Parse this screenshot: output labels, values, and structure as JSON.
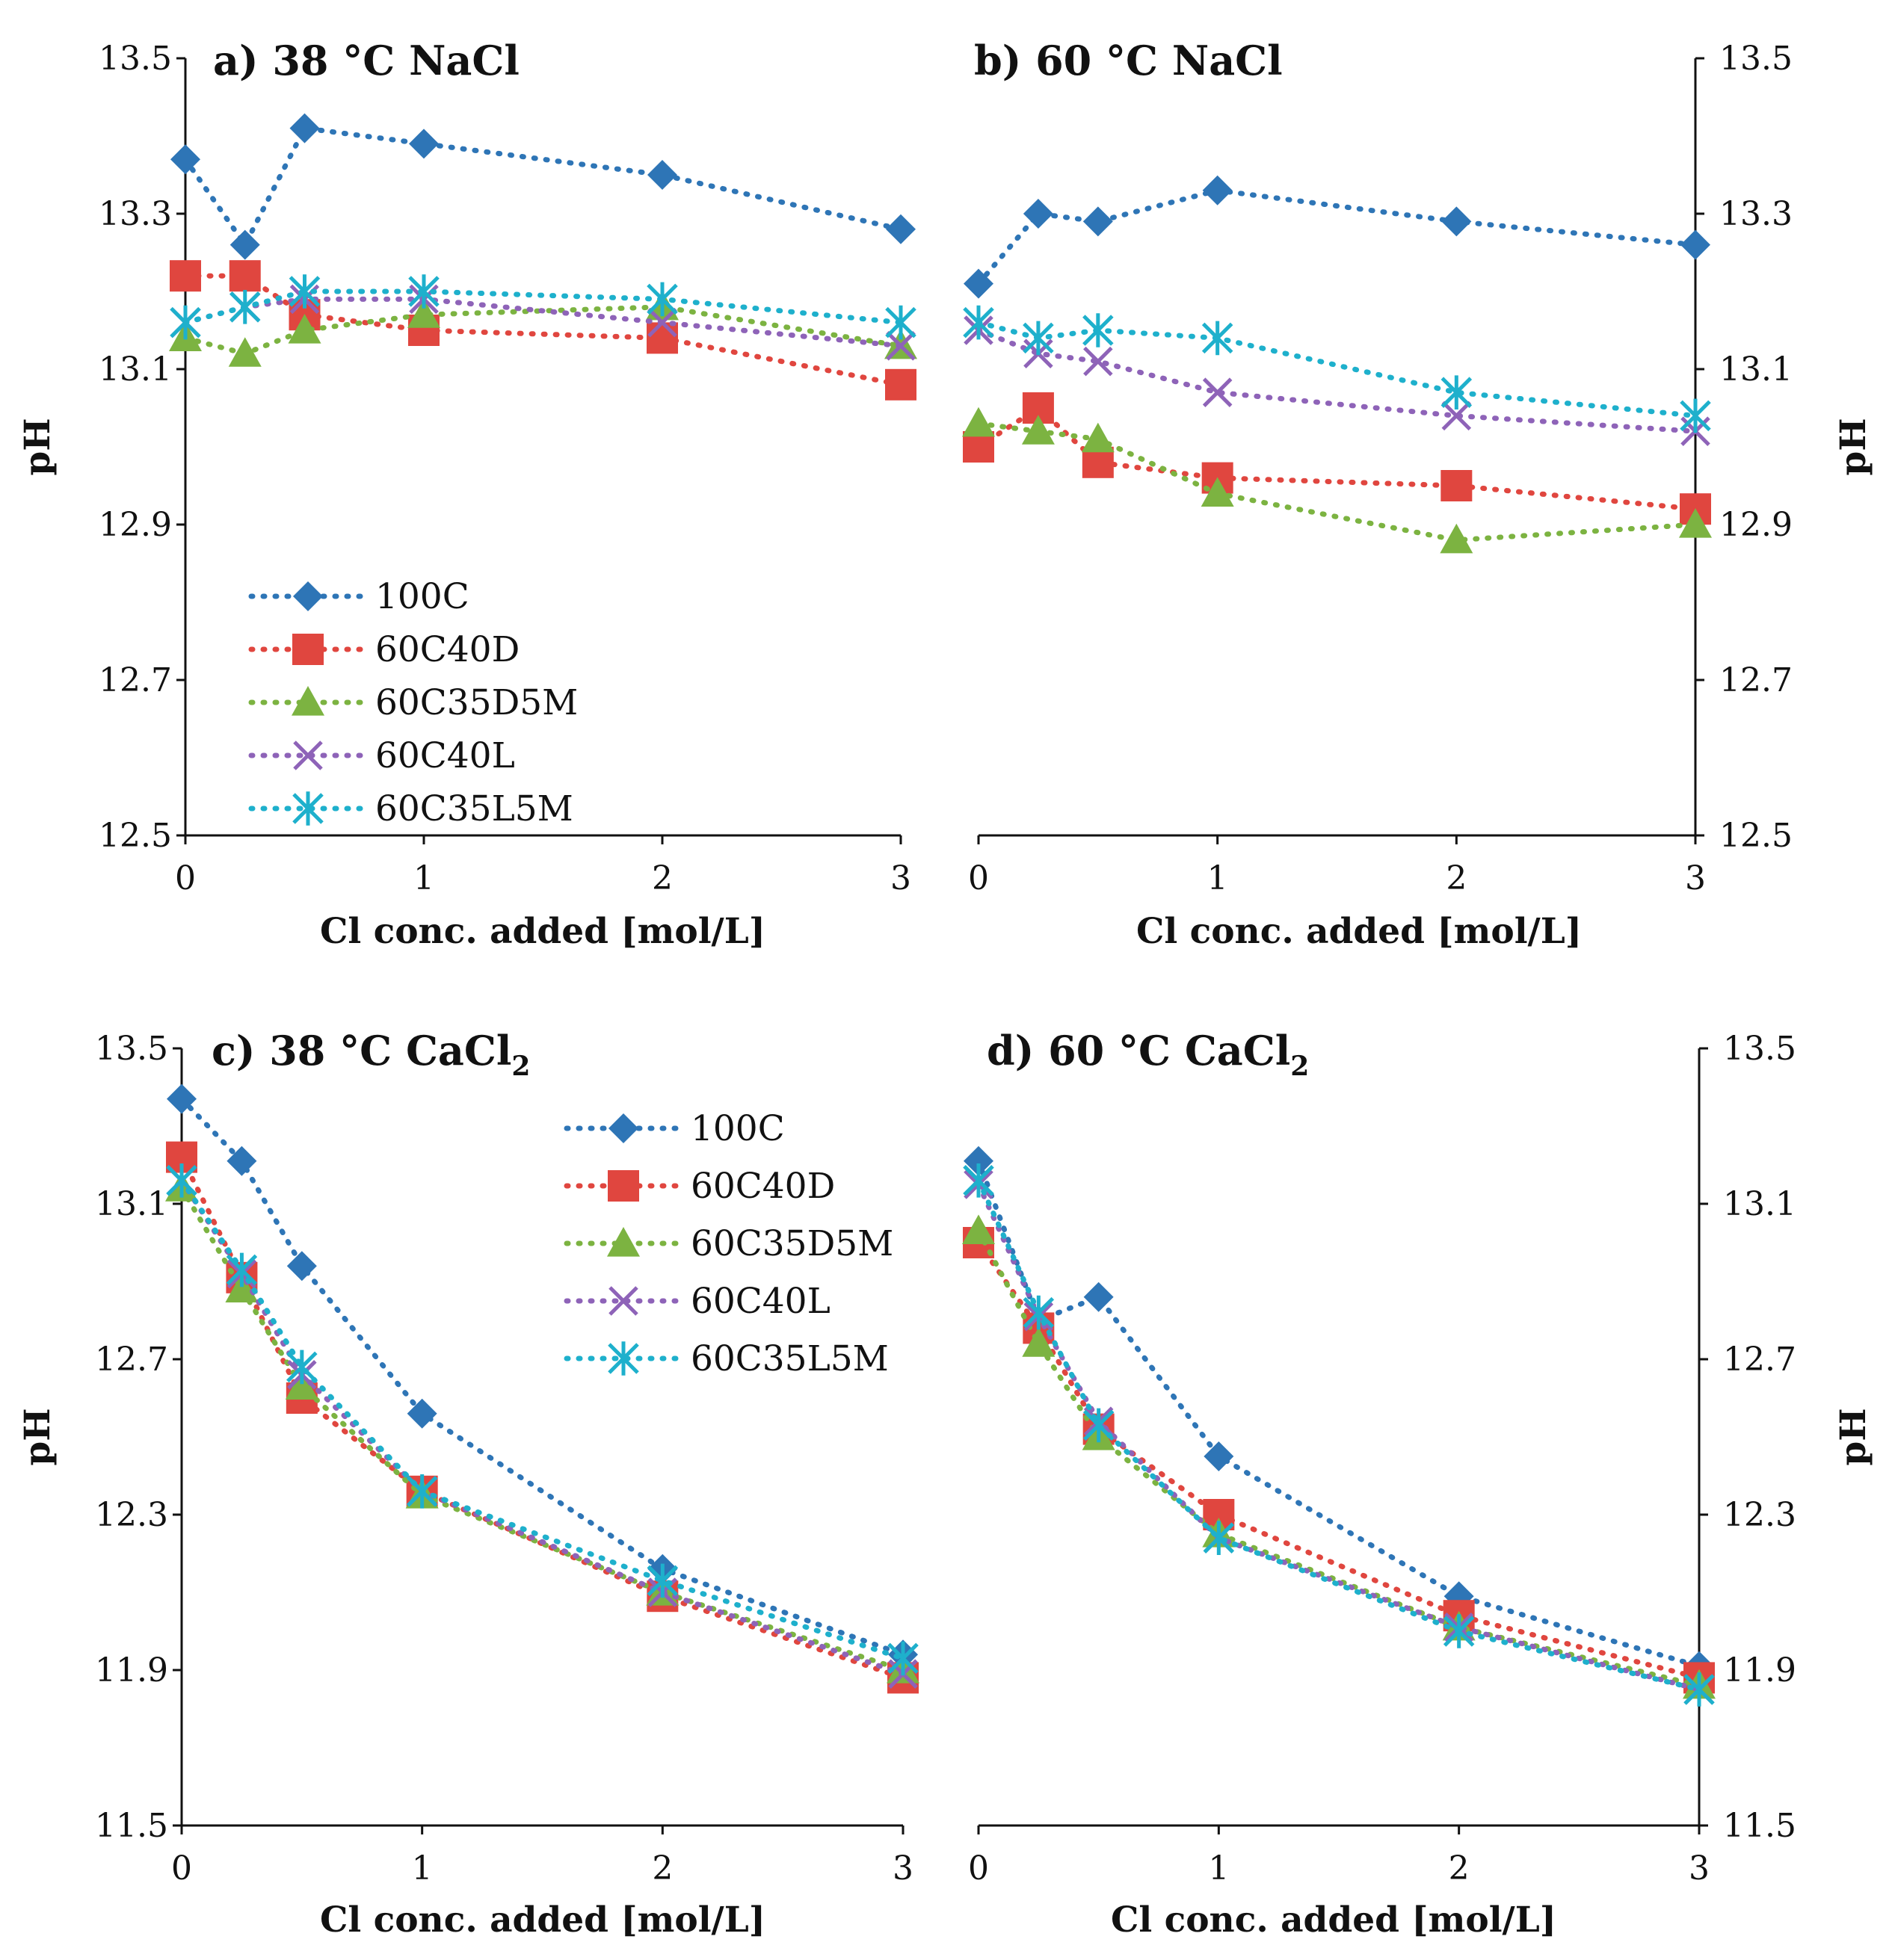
{
  "chart_data": [
    {
      "type": "line",
      "title": "a) 38 °C NaCl",
      "xlabel": "Cl conc. added [mol/L]",
      "ylabel": "pH",
      "x": [
        0,
        0.25,
        0.5,
        1,
        2,
        3
      ],
      "xticks": [
        "0",
        "1",
        "2",
        "3"
      ],
      "yticks": [
        "12.5",
        "12.7",
        "12.9",
        "13.1",
        "13.3",
        "13.5"
      ],
      "xlim": [
        0,
        3
      ],
      "ylim": [
        12.5,
        13.5
      ],
      "y_axis_side": "left",
      "legend": "middle-left",
      "series": [
        {
          "name": "100C",
          "values": [
            13.37,
            13.26,
            13.41,
            13.39,
            13.35,
            13.28
          ]
        },
        {
          "name": "60C40D",
          "values": [
            13.22,
            13.22,
            13.17,
            13.15,
            13.14,
            13.08
          ]
        },
        {
          "name": "60C35D5M",
          "values": [
            13.14,
            13.12,
            13.15,
            13.17,
            13.18,
            13.13
          ]
        },
        {
          "name": "60C40L",
          "values": [
            13.16,
            13.18,
            13.19,
            13.19,
            13.16,
            13.13
          ]
        },
        {
          "name": "60C35L5M",
          "values": [
            13.16,
            13.18,
            13.2,
            13.2,
            13.19,
            13.16
          ]
        }
      ]
    },
    {
      "type": "line",
      "title": "b) 60 °C NaCl",
      "xlabel": "Cl conc. added [mol/L]",
      "ylabel": "pH",
      "x": [
        0,
        0.25,
        0.5,
        1,
        2,
        3
      ],
      "xticks": [
        "0",
        "1",
        "2",
        "3"
      ],
      "yticks": [
        "12.5",
        "12.7",
        "12.9",
        "13.1",
        "13.3",
        "13.5"
      ],
      "xlim": [
        0,
        3
      ],
      "ylim": [
        12.5,
        13.5
      ],
      "y_axis_side": "right",
      "legend": "none",
      "series": [
        {
          "name": "100C",
          "values": [
            13.21,
            13.3,
            13.29,
            13.33,
            13.29,
            13.26
          ]
        },
        {
          "name": "60C40D",
          "values": [
            13.0,
            13.05,
            12.98,
            12.96,
            12.95,
            12.92
          ]
        },
        {
          "name": "60C35D5M",
          "values": [
            13.03,
            13.02,
            13.01,
            12.94,
            12.88,
            12.9
          ]
        },
        {
          "name": "60C40L",
          "values": [
            13.15,
            13.12,
            13.11,
            13.07,
            13.04,
            13.02
          ]
        },
        {
          "name": "60C35L5M",
          "values": [
            13.16,
            13.14,
            13.15,
            13.14,
            13.07,
            13.04
          ]
        }
      ]
    },
    {
      "type": "line",
      "title": "c) 38 °C CaCl",
      "title_subscript": "2",
      "xlabel": "Cl conc. added [mol/L]",
      "ylabel": "pH",
      "x": [
        0,
        0.25,
        0.5,
        1,
        2,
        3
      ],
      "xticks": [
        "0",
        "1",
        "2",
        "3"
      ],
      "yticks": [
        "11.5",
        "11.9",
        "12.3",
        "12.7",
        "13.1",
        "13.5"
      ],
      "xlim": [
        0,
        3
      ],
      "ylim": [
        11.5,
        13.5
      ],
      "y_axis_side": "left",
      "legend": "top-center",
      "series": [
        {
          "name": "100C",
          "values": [
            13.37,
            13.21,
            12.94,
            12.56,
            12.16,
            11.94
          ]
        },
        {
          "name": "60C40D",
          "values": [
            13.22,
            12.91,
            12.6,
            12.36,
            12.09,
            11.88
          ]
        },
        {
          "name": "60C35D5M",
          "values": [
            13.14,
            12.88,
            12.63,
            12.35,
            12.1,
            11.9
          ]
        },
        {
          "name": "60C40L",
          "values": [
            13.16,
            12.92,
            12.66,
            12.36,
            12.1,
            11.89
          ]
        },
        {
          "name": "60C35L5M",
          "values": [
            13.16,
            12.93,
            12.68,
            12.36,
            12.13,
            11.93
          ]
        }
      ]
    },
    {
      "type": "line",
      "title": "d) 60 °C CaCl",
      "title_subscript": "2",
      "xlabel": "Cl conc. added [mol/L]",
      "ylabel": "pH",
      "x": [
        0,
        0.25,
        0.5,
        1,
        2,
        3
      ],
      "xticks": [
        "0",
        "1",
        "2",
        "3"
      ],
      "yticks": [
        "11.5",
        "11.9",
        "12.3",
        "12.7",
        "13.1",
        "13.5"
      ],
      "xlim": [
        0,
        3
      ],
      "ylim": [
        11.5,
        13.5
      ],
      "y_axis_side": "right",
      "legend": "none",
      "series": [
        {
          "name": "100C",
          "values": [
            13.21,
            12.8,
            12.86,
            12.45,
            12.09,
            11.91
          ]
        },
        {
          "name": "60C40D",
          "values": [
            13.0,
            12.78,
            12.52,
            12.3,
            12.04,
            11.88
          ]
        },
        {
          "name": "60C35D5M",
          "values": [
            13.03,
            12.74,
            12.5,
            12.25,
            12.01,
            11.86
          ]
        },
        {
          "name": "60C40L",
          "values": [
            13.15,
            12.81,
            12.54,
            12.24,
            12.01,
            11.85
          ]
        },
        {
          "name": "60C35L5M",
          "values": [
            13.16,
            12.82,
            12.53,
            12.24,
            12.0,
            11.85
          ]
        }
      ]
    }
  ],
  "series_styles": [
    {
      "name": "100C",
      "color": "#2e75b6",
      "marker": "diamond"
    },
    {
      "name": "60C40D",
      "color": "#e0463f",
      "marker": "square"
    },
    {
      "name": "60C35D5M",
      "color": "#7cb341",
      "marker": "triangle"
    },
    {
      "name": "60C40L",
      "color": "#8e63b8",
      "marker": "x"
    },
    {
      "name": "60C35L5M",
      "color": "#1eb0cc",
      "marker": "star"
    }
  ]
}
